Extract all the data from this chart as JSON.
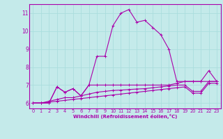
{
  "xlabel": "Windchill (Refroidissement éolien,°C)",
  "xlim": [
    -0.5,
    23.5
  ],
  "ylim": [
    5.7,
    11.5
  ],
  "yticks": [
    6,
    7,
    8,
    9,
    10,
    11
  ],
  "xticks": [
    0,
    1,
    2,
    3,
    4,
    5,
    6,
    7,
    8,
    9,
    10,
    11,
    12,
    13,
    14,
    15,
    16,
    17,
    18,
    19,
    20,
    21,
    22,
    23
  ],
  "bg_color": "#c4eaea",
  "line_color": "#aa00aa",
  "grid_color": "#aadddd",
  "series": [
    [
      6.0,
      6.0,
      6.0,
      6.9,
      6.6,
      6.8,
      6.4,
      7.0,
      8.6,
      8.6,
      10.3,
      11.0,
      11.2,
      10.5,
      10.6,
      10.2,
      9.8,
      9.0,
      7.2,
      7.2,
      7.2,
      7.2,
      7.8,
      7.2
    ],
    [
      6.0,
      6.0,
      6.0,
      6.9,
      6.6,
      6.8,
      6.4,
      7.0,
      7.0,
      7.0,
      7.0,
      7.0,
      7.0,
      7.0,
      7.0,
      7.0,
      7.0,
      7.0,
      7.1,
      7.2,
      7.2,
      7.2,
      7.2,
      7.2
    ],
    [
      6.0,
      6.0,
      6.1,
      6.2,
      6.3,
      6.3,
      6.4,
      6.5,
      6.6,
      6.65,
      6.7,
      6.72,
      6.75,
      6.78,
      6.8,
      6.85,
      6.9,
      6.95,
      7.0,
      7.0,
      6.65,
      6.65,
      7.2,
      7.2
    ],
    [
      6.0,
      6.0,
      6.05,
      6.1,
      6.15,
      6.2,
      6.25,
      6.3,
      6.35,
      6.4,
      6.45,
      6.5,
      6.55,
      6.6,
      6.65,
      6.7,
      6.75,
      6.8,
      6.85,
      6.9,
      6.55,
      6.55,
      7.1,
      7.1
    ]
  ]
}
